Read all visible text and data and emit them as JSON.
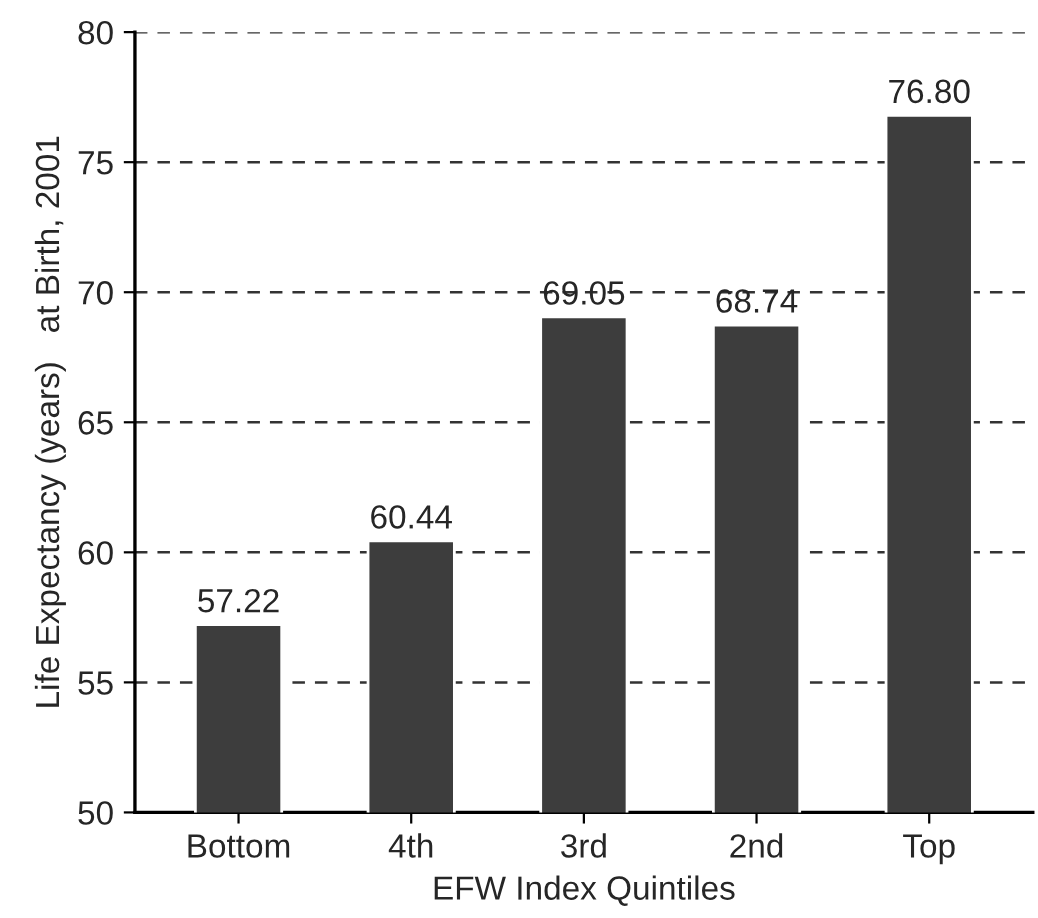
{
  "chart_data": {
    "type": "bar",
    "xlabel": "EFW Index Quintiles",
    "ylabel": "Life Expectancy (years)   at Birth, 2001",
    "categories": [
      "Bottom",
      "4th",
      "3rd",
      "2nd",
      "Top"
    ],
    "values": [
      57.22,
      60.44,
      69.05,
      68.74,
      76.8
    ],
    "value_labels": [
      "57.22",
      "60.44",
      "69.05",
      "68.74",
      "76.80"
    ],
    "color": "#3d3d3d",
    "ylim": [
      50,
      80
    ],
    "yticks": [
      50,
      55,
      60,
      65,
      70,
      75,
      80
    ],
    "grid": "y"
  }
}
